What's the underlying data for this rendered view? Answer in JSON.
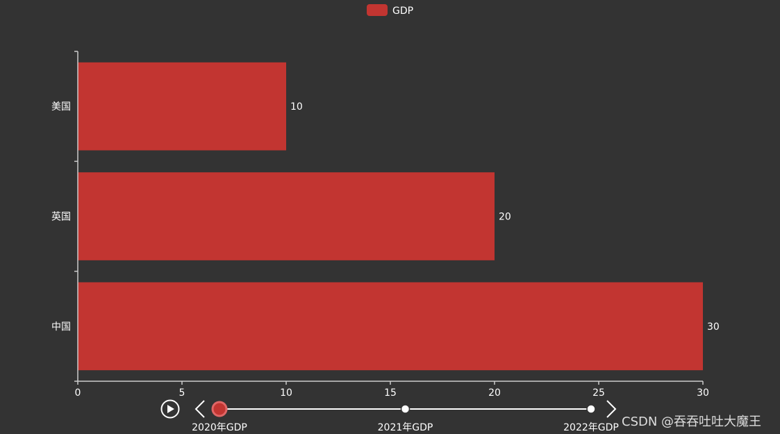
{
  "chart_data": {
    "type": "bar",
    "orientation": "horizontal",
    "categories": [
      "中国",
      "英国",
      "美国"
    ],
    "series": [
      {
        "name": "GDP",
        "values": [
          30,
          20,
          10
        ]
      }
    ],
    "xlim": [
      0,
      30
    ],
    "x_ticks": [
      0,
      5,
      10,
      15,
      20,
      25,
      30
    ],
    "show_value_labels": true,
    "legend": {
      "position": "top-center",
      "entries": [
        "GDP"
      ]
    },
    "grid": false,
    "bar_color": "#c23531"
  },
  "timeline": {
    "items": [
      "2020年GDP",
      "2021年GDP",
      "2022年GDP"
    ],
    "current_index": 0,
    "play_icon": "play-icon",
    "prev_icon": "chevron-left-icon",
    "next_icon": "chevron-right-icon"
  },
  "watermark": "CSDN @吞吞吐吐大魔王",
  "colors": {
    "background": "#333333",
    "bar": "#c23531",
    "text": "#ffffff",
    "axis": "#cccccc"
  }
}
